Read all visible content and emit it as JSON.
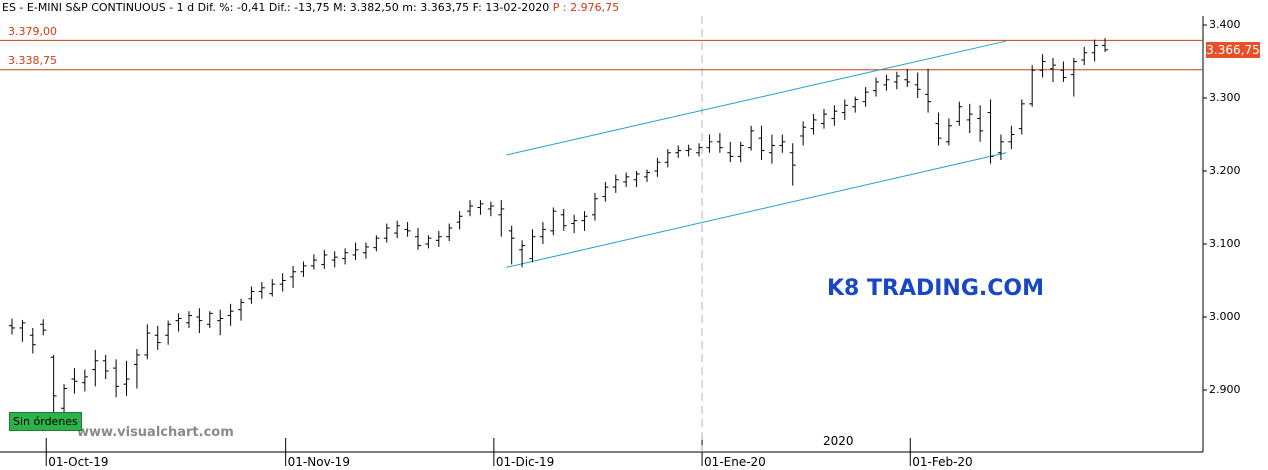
{
  "header": {
    "text": "ES - E-MINI S&P CONTINUOUS - 1 d  Dif. %: -0,41  Dif.: -13,75  M: 3.382,50  m: 3.363,75  F: 13-02-2020",
    "red_text": "P : 2.976,75"
  },
  "levels": [
    {
      "label": "3.379,00",
      "value": 3379.0
    },
    {
      "label": "3.338,75",
      "value": 3338.75
    }
  ],
  "price_badge": "3.366,75",
  "watermark": "K8 TRADING.COM",
  "site": "www.visualchart.com",
  "orders_button": "Sin órdenes",
  "year_marker": "2020",
  "colors": {
    "level_line": "#d03b10",
    "channel": "#1fa0d0",
    "bar": "#000000",
    "badge": "#e8502a",
    "watermark": "#1747c7"
  },
  "chart_data": {
    "type": "ohlc",
    "y_ticks": [
      {
        "label": "3.400",
        "value": 3400
      },
      {
        "label": "3.300",
        "value": 3300
      },
      {
        "label": "3.200",
        "value": 3200
      },
      {
        "label": "3.100",
        "value": 3100
      },
      {
        "label": "3.000",
        "value": 3000
      },
      {
        "label": "2.900",
        "value": 2900
      }
    ],
    "ylim": [
      2830,
      3410
    ],
    "x_ticks": [
      {
        "label": "01-Oct-19",
        "index": 3
      },
      {
        "label": "01-Nov-19",
        "index": 26
      },
      {
        "label": "01-Dic-19",
        "index": 46
      },
      {
        "label": "01-Ene-20",
        "index": 66
      },
      {
        "label": "01-Feb-20",
        "index": 86
      }
    ],
    "bars": [
      [
        2988,
        2998,
        2976,
        2985
      ],
      [
        2985,
        2996,
        2966,
        2992
      ],
      [
        2975,
        2985,
        2950,
        2962
      ],
      [
        2990,
        2997,
        2975,
        2982
      ],
      [
        2945,
        2948,
        2856,
        2892
      ],
      [
        2875,
        2908,
        2864,
        2902
      ],
      [
        2915,
        2930,
        2895,
        2912
      ],
      [
        2910,
        2928,
        2898,
        2918
      ],
      [
        2928,
        2955,
        2905,
        2940
      ],
      [
        2940,
        2948,
        2915,
        2926
      ],
      [
        2930,
        2942,
        2890,
        2905
      ],
      [
        2908,
        2940,
        2892,
        2915
      ],
      [
        2935,
        2956,
        2902,
        2948
      ],
      [
        2948,
        2990,
        2942,
        2978
      ],
      [
        2975,
        2988,
        2955,
        2965
      ],
      [
        2975,
        2995,
        2962,
        2990
      ],
      [
        2995,
        3005,
        2980,
        2998
      ],
      [
        2992,
        3008,
        2985,
        3002
      ],
      [
        3000,
        3012,
        2978,
        2995
      ],
      [
        2990,
        3008,
        2985,
        3005
      ],
      [
        2995,
        3010,
        2975,
        2998
      ],
      [
        3002,
        3018,
        2988,
        3008
      ],
      [
        3010,
        3025,
        2995,
        3020
      ],
      [
        3025,
        3042,
        3018,
        3035
      ],
      [
        3035,
        3048,
        3025,
        3040
      ],
      [
        3032,
        3052,
        3028,
        3045
      ],
      [
        3045,
        3060,
        3035,
        3050
      ],
      [
        3055,
        3070,
        3040,
        3062
      ],
      [
        3062,
        3076,
        3055,
        3070
      ],
      [
        3070,
        3086,
        3065,
        3078
      ],
      [
        3072,
        3092,
        3066,
        3085
      ],
      [
        3078,
        3090,
        3068,
        3082
      ],
      [
        3080,
        3094,
        3072,
        3088
      ],
      [
        3085,
        3102,
        3078,
        3092
      ],
      [
        3088,
        3102,
        3080,
        3096
      ],
      [
        3095,
        3112,
        3090,
        3108
      ],
      [
        3108,
        3128,
        3102,
        3122
      ],
      [
        3115,
        3132,
        3108,
        3125
      ],
      [
        3120,
        3130,
        3110,
        3118
      ],
      [
        3110,
        3122,
        3092,
        3098
      ],
      [
        3100,
        3112,
        3094,
        3108
      ],
      [
        3105,
        3118,
        3096,
        3110
      ],
      [
        3110,
        3128,
        3104,
        3122
      ],
      [
        3130,
        3145,
        3120,
        3138
      ],
      [
        3145,
        3160,
        3138,
        3152
      ],
      [
        3150,
        3160,
        3140,
        3155
      ],
      [
        3148,
        3158,
        3138,
        3152
      ],
      [
        3140,
        3160,
        3110,
        3148
      ],
      [
        3118,
        3125,
        3072,
        3108
      ],
      [
        3092,
        3105,
        3068,
        3098
      ],
      [
        3080,
        3120,
        3075,
        3110
      ],
      [
        3110,
        3130,
        3100,
        3120
      ],
      [
        3118,
        3150,
        3112,
        3145
      ],
      [
        3140,
        3148,
        3118,
        3125
      ],
      [
        3128,
        3140,
        3115,
        3132
      ],
      [
        3132,
        3145,
        3118,
        3138
      ],
      [
        3140,
        3170,
        3132,
        3162
      ],
      [
        3165,
        3185,
        3158,
        3178
      ],
      [
        3178,
        3195,
        3170,
        3188
      ],
      [
        3185,
        3198,
        3178,
        3192
      ],
      [
        3188,
        3200,
        3178,
        3196
      ],
      [
        3192,
        3202,
        3185,
        3198
      ],
      [
        3200,
        3218,
        3192,
        3212
      ],
      [
        3212,
        3230,
        3205,
        3225
      ],
      [
        3225,
        3235,
        3218,
        3228
      ],
      [
        3228,
        3236,
        3220,
        3230
      ],
      [
        3225,
        3238,
        3220,
        3232
      ],
      [
        3232,
        3250,
        3225,
        3240
      ],
      [
        3240,
        3252,
        3225,
        3232
      ],
      [
        3225,
        3240,
        3212,
        3220
      ],
      [
        3220,
        3240,
        3212,
        3235
      ],
      [
        3232,
        3262,
        3228,
        3255
      ],
      [
        3245,
        3262,
        3215,
        3228
      ],
      [
        3225,
        3250,
        3210,
        3235
      ],
      [
        3235,
        3250,
        3225,
        3240
      ],
      [
        3225,
        3238,
        3180,
        3208
      ],
      [
        3248,
        3268,
        3235,
        3260
      ],
      [
        3258,
        3278,
        3250,
        3270
      ],
      [
        3265,
        3285,
        3258,
        3278
      ],
      [
        3272,
        3290,
        3262,
        3282
      ],
      [
        3280,
        3298,
        3270,
        3290
      ],
      [
        3288,
        3302,
        3280,
        3298
      ],
      [
        3295,
        3315,
        3288,
        3308
      ],
      [
        3310,
        3328,
        3302,
        3322
      ],
      [
        3318,
        3332,
        3310,
        3325
      ],
      [
        3322,
        3336,
        3312,
        3330
      ],
      [
        3325,
        3340,
        3315,
        3322
      ],
      [
        3318,
        3335,
        3300,
        3312
      ],
      [
        3305,
        3340,
        3280,
        3295
      ],
      [
        3265,
        3280,
        3235,
        3245
      ],
      [
        3240,
        3272,
        3235,
        3262
      ],
      [
        3268,
        3295,
        3262,
        3288
      ],
      [
        3270,
        3292,
        3252,
        3278
      ],
      [
        3272,
        3290,
        3240,
        3255
      ],
      [
        3280,
        3298,
        3210,
        3220
      ],
      [
        3225,
        3250,
        3215,
        3240
      ],
      [
        3240,
        3262,
        3230,
        3250
      ],
      [
        3258,
        3298,
        3250,
        3292
      ],
      [
        3292,
        3345,
        3288,
        3338
      ],
      [
        3338,
        3360,
        3328,
        3350
      ],
      [
        3340,
        3355,
        3322,
        3345
      ],
      [
        3338,
        3350,
        3322,
        3328
      ],
      [
        3332,
        3355,
        3302,
        3350
      ],
      [
        3352,
        3370,
        3345,
        3362
      ],
      [
        3362,
        3380,
        3350,
        3372
      ],
      [
        3372,
        3382,
        3363,
        3366
      ]
    ],
    "channel_lines": [
      {
        "from": {
          "index": 47.5,
          "value": 3222
        },
        "to": {
          "index": 95.5,
          "value": 3378
        }
      },
      {
        "from": {
          "index": 47.5,
          "value": 3068
        },
        "to": {
          "index": 95.5,
          "value": 3225
        }
      }
    ]
  }
}
